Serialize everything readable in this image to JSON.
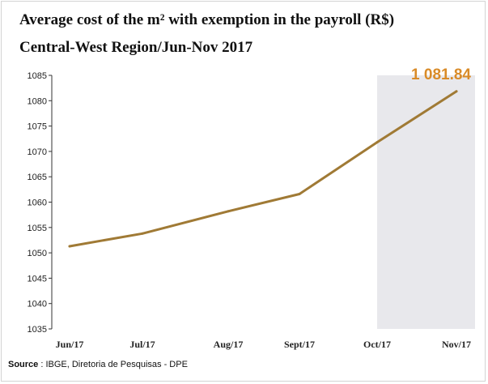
{
  "title_line1": "Average cost of the m² with exemption in the payroll (R$)",
  "title_line2": "Central-West Region/Jun-Nov 2017",
  "source_label": "Source",
  "source_text": " : IBGE, Diretoria de Pesquisas - DPE",
  "colors": {
    "line": "#a07a35",
    "highlight_band": "#e8e8ec",
    "callout": "#d98b28",
    "axis": "#333333"
  },
  "chart_data": {
    "type": "line",
    "title": "Average cost of the m² with exemption in the payroll (R$)",
    "subtitle": "Central-West Region/Jun-Nov 2017",
    "categories": [
      "Jun/17",
      "Jul/17",
      "Aug/17",
      "Sept/17",
      "Oct/17",
      "Nov/17"
    ],
    "values": [
      1051.3,
      1053.8,
      1058.2,
      1061.6,
      1071.8,
      1081.84
    ],
    "ylim": [
      1035,
      1085
    ],
    "yticks": [
      1035,
      1040,
      1045,
      1050,
      1055,
      1060,
      1065,
      1070,
      1075,
      1080,
      1085
    ],
    "grid": false,
    "highlight_categories": [
      "Oct/17",
      "Nov/17"
    ],
    "annotation": "1 081.84"
  }
}
